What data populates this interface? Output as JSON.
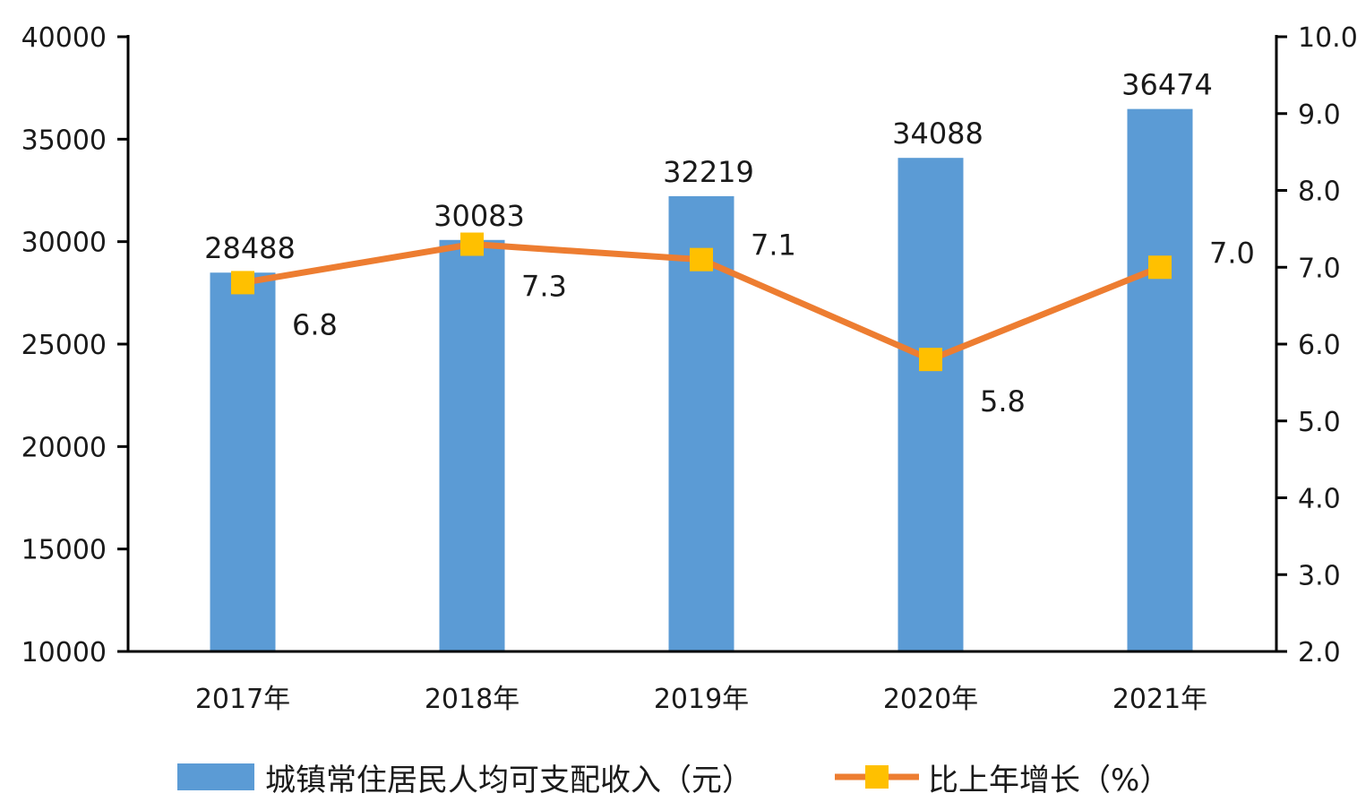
{
  "chart_data": {
    "type": "bar+line",
    "categories": [
      "2017年",
      "2018年",
      "2019年",
      "2020年",
      "2021年"
    ],
    "series": [
      {
        "name": "城镇常住居民人均可支配收入（元）",
        "type": "bar",
        "axis": "left",
        "values": [
          28488,
          30083,
          32219,
          34088,
          36474
        ],
        "labels": [
          "28488",
          "30083",
          "32219",
          "34088",
          "36474"
        ],
        "color": "#5B9BD5"
      },
      {
        "name": "比上年增长（%）",
        "type": "line",
        "axis": "right",
        "values": [
          6.8,
          7.3,
          7.1,
          5.8,
          7.0
        ],
        "labels": [
          "6.8",
          "7.3",
          "7.1",
          "5.8",
          "7.0"
        ],
        "color": "#ED7D31",
        "marker_color": "#FFC000"
      }
    ],
    "y_left": {
      "ylim": [
        10000,
        40000
      ],
      "ticks": [
        10000,
        15000,
        20000,
        25000,
        30000,
        35000,
        40000
      ],
      "tick_labels": [
        "10000",
        "15000",
        "20000",
        "25000",
        "30000",
        "35000",
        "40000"
      ]
    },
    "y_right": {
      "ylim": [
        2.0,
        10.0
      ],
      "ticks": [
        2,
        3,
        4,
        5,
        6,
        7,
        8,
        9,
        10
      ],
      "tick_labels": [
        "2.0",
        "3.0",
        "4.0",
        "5.0",
        "6.0",
        "7.0",
        "8.0",
        "9.0",
        "10.0"
      ]
    },
    "legend_position": "bottom",
    "grid": false
  }
}
